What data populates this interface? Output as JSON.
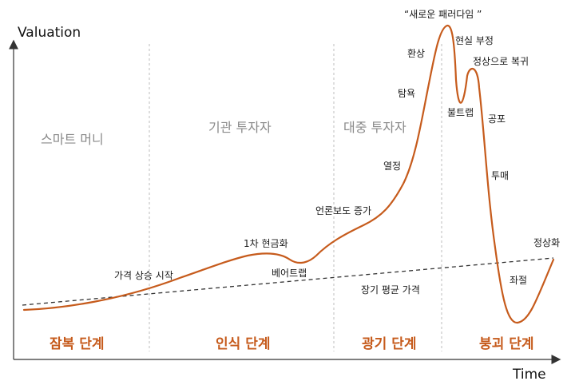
{
  "colors": {
    "curve": "#c65b1c",
    "phase_text": "#c65b1c",
    "group_text": "#8a8a8a",
    "axis": "#333333",
    "divider": "#bdbdbd"
  },
  "axes": {
    "y_label": "Valuation",
    "x_label": "Time"
  },
  "groups": {
    "smart_money": "스마트 머니",
    "institutional": "기관 투자자",
    "public": "대중 투자자"
  },
  "phases": {
    "stealth": "잠복 단계",
    "awareness": "인식 단계",
    "mania": "광기 단계",
    "blowoff": "붕괴 단계"
  },
  "annotations": {
    "price_rise": "가격 상승 시작",
    "first_sell": "1차 현금화",
    "bear_trap": "베어트랩",
    "media": "언론보도 증가",
    "enthusiasm": "열정",
    "greed": "탐욕",
    "delusion": "환상",
    "new_paradigm": "“새로운 패러다임 ”",
    "denial": "현실 부정",
    "return_normal": "정상으로 복귀",
    "bull_trap": "불트랩",
    "fear": "공포",
    "capitulation": "투매",
    "despair": "좌절",
    "normalization": "정상화",
    "long_term_mean": "장기 평균 가격"
  }
}
